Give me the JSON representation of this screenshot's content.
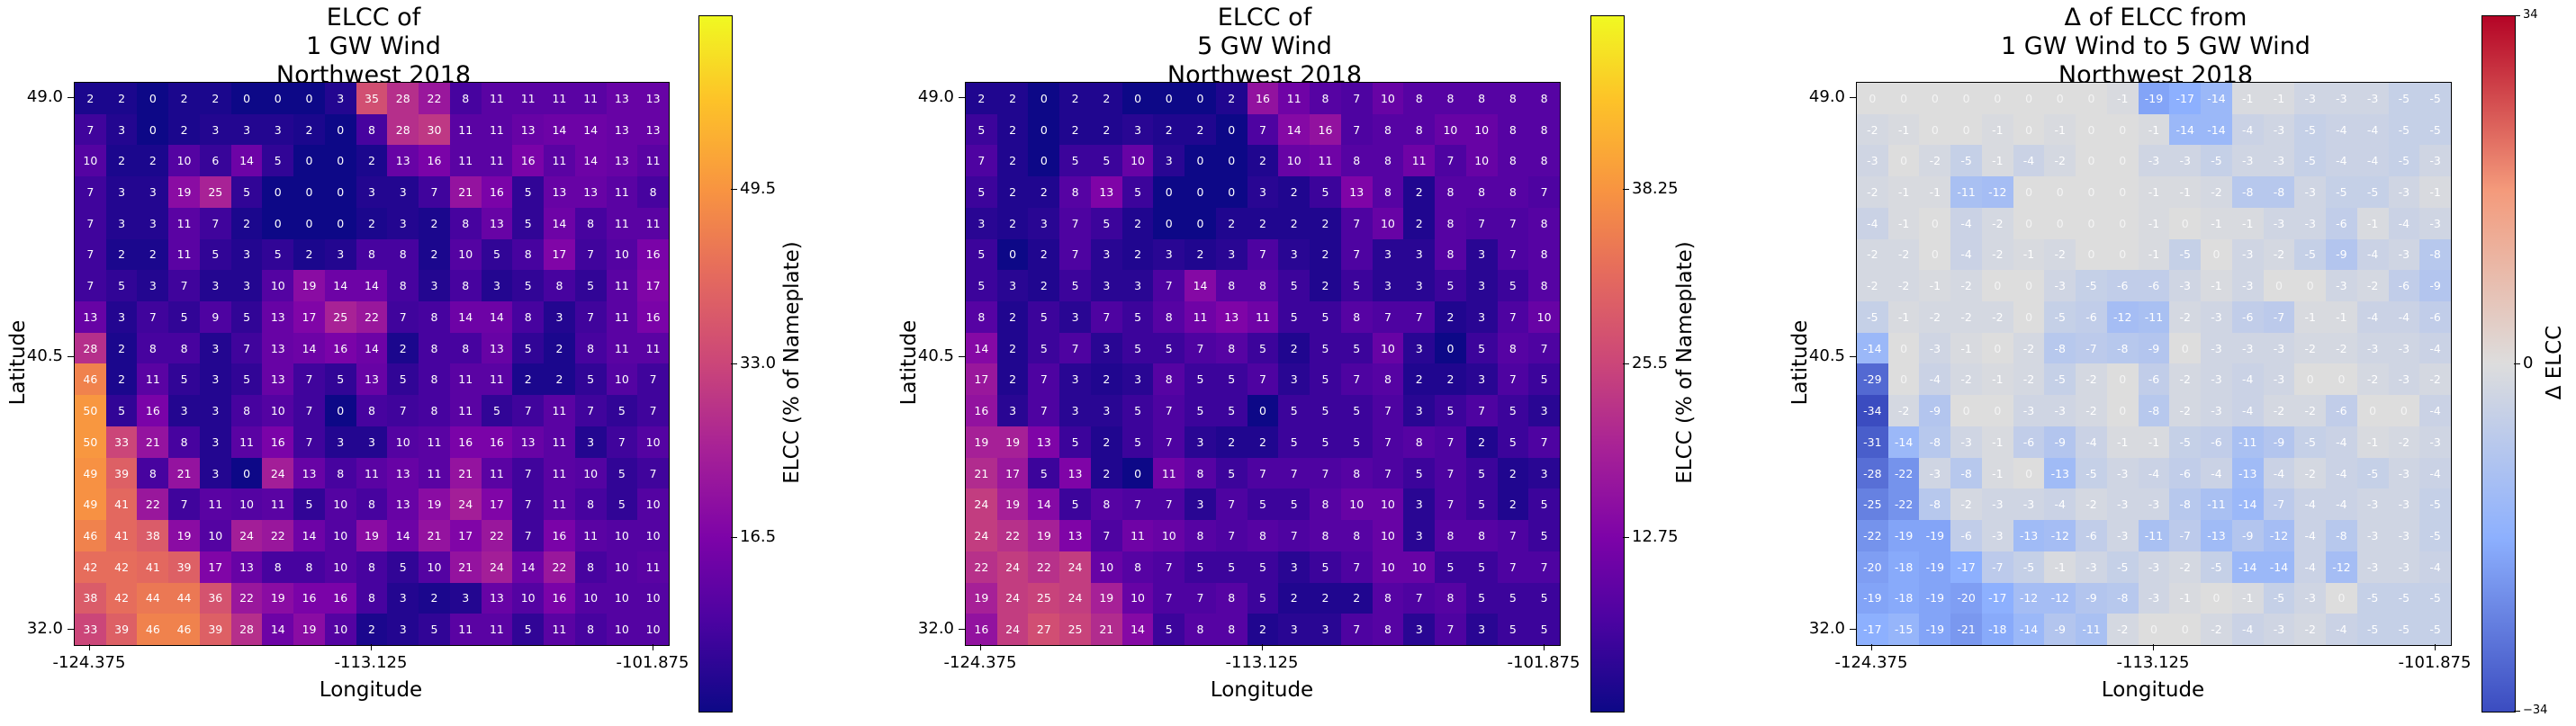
{
  "chart_data": [
    {
      "type": "heatmap",
      "title": "ELCC of\n1 GW Wind\nNorthwest 2018",
      "xlabel": "Longitude",
      "ylabel": "Latitude",
      "x_ticks": [
        "-124.375",
        "-113.125",
        "-101.875"
      ],
      "y_ticks": [
        "49.0",
        "40.5",
        "32.0"
      ],
      "colormap": "plasma",
      "colorbar_label": "ELCC (% of Nameplate)",
      "colorbar_ticks": [
        "16.5",
        "33.0",
        "49.5"
      ],
      "vmin": 0,
      "vmax": 66,
      "values": [
        [
          2,
          2,
          0,
          2,
          2,
          0,
          0,
          0,
          3,
          35,
          28,
          22,
          8,
          11,
          11,
          11,
          11,
          13,
          13
        ],
        [
          7,
          3,
          0,
          2,
          3,
          3,
          3,
          2,
          0,
          8,
          28,
          30,
          11,
          11,
          13,
          14,
          14,
          13,
          13
        ],
        [
          10,
          2,
          2,
          10,
          6,
          14,
          5,
          0,
          0,
          2,
          13,
          16,
          11,
          11,
          16,
          11,
          14,
          13,
          11
        ],
        [
          7,
          3,
          3,
          19,
          25,
          5,
          0,
          0,
          0,
          3,
          3,
          7,
          21,
          16,
          5,
          13,
          13,
          11,
          8
        ],
        [
          7,
          3,
          3,
          11,
          7,
          2,
          0,
          0,
          0,
          2,
          3,
          2,
          8,
          13,
          5,
          14,
          8,
          11,
          11
        ],
        [
          7,
          2,
          2,
          11,
          5,
          3,
          5,
          2,
          3,
          8,
          8,
          2,
          10,
          5,
          8,
          17,
          7,
          10,
          16
        ],
        [
          7,
          5,
          3,
          7,
          3,
          3,
          10,
          19,
          14,
          14,
          8,
          3,
          8,
          3,
          5,
          8,
          5,
          11,
          17
        ],
        [
          13,
          3,
          7,
          5,
          9,
          5,
          13,
          17,
          25,
          22,
          7,
          8,
          14,
          14,
          8,
          3,
          7,
          11,
          16
        ],
        [
          28,
          2,
          8,
          8,
          3,
          7,
          13,
          14,
          16,
          14,
          2,
          8,
          8,
          13,
          5,
          2,
          8,
          11,
          11
        ],
        [
          46,
          2,
          11,
          5,
          3,
          5,
          13,
          7,
          5,
          13,
          5,
          8,
          11,
          11,
          2,
          2,
          5,
          10,
          7
        ],
        [
          50,
          5,
          16,
          3,
          3,
          8,
          10,
          7,
          0,
          8,
          7,
          8,
          11,
          5,
          7,
          11,
          7,
          5,
          7
        ],
        [
          50,
          33,
          21,
          8,
          3,
          11,
          16,
          7,
          3,
          3,
          10,
          11,
          16,
          16,
          13,
          11,
          3,
          7,
          10
        ],
        [
          49,
          39,
          8,
          21,
          3,
          0,
          24,
          13,
          8,
          11,
          13,
          11,
          21,
          11,
          7,
          11,
          10,
          5,
          7
        ],
        [
          49,
          41,
          22,
          7,
          11,
          10,
          11,
          5,
          10,
          8,
          13,
          19,
          24,
          17,
          7,
          11,
          8,
          5,
          10
        ],
        [
          46,
          41,
          38,
          19,
          10,
          24,
          22,
          14,
          10,
          19,
          14,
          21,
          17,
          22,
          7,
          16,
          11,
          10,
          10
        ],
        [
          42,
          42,
          41,
          39,
          17,
          13,
          8,
          8,
          10,
          8,
          5,
          10,
          21,
          24,
          14,
          22,
          8,
          10,
          11
        ],
        [
          38,
          42,
          44,
          44,
          36,
          22,
          19,
          16,
          16,
          8,
          3,
          2,
          3,
          13,
          10,
          16,
          10,
          10,
          10
        ],
        [
          33,
          39,
          46,
          46,
          39,
          28,
          14,
          19,
          10,
          2,
          3,
          5,
          11,
          11,
          5,
          11,
          8,
          10,
          10
        ]
      ]
    },
    {
      "type": "heatmap",
      "title": "ELCC of\n5 GW Wind\nNorthwest 2018",
      "xlabel": "Longitude",
      "ylabel": "Latitude",
      "x_ticks": [
        "-124.375",
        "-113.125",
        "-101.875"
      ],
      "y_ticks": [
        "49.0",
        "40.5",
        "32.0"
      ],
      "colormap": "plasma",
      "colorbar_label": "ELCC (% of Nameplate)",
      "colorbar_ticks": [
        "12.75",
        "25.5",
        "38.25"
      ],
      "vmin": 0,
      "vmax": 51,
      "values": [
        [
          2,
          2,
          0,
          2,
          2,
          0,
          0,
          0,
          2,
          16,
          11,
          8,
          7,
          10,
          8,
          8,
          8,
          8,
          8
        ],
        [
          5,
          2,
          0,
          2,
          2,
          3,
          2,
          2,
          0,
          7,
          14,
          16,
          7,
          8,
          8,
          10,
          10,
          8,
          8
        ],
        [
          7,
          2,
          0,
          5,
          5,
          10,
          3,
          0,
          0,
          2,
          10,
          11,
          8,
          8,
          11,
          7,
          10,
          8,
          8
        ],
        [
          5,
          2,
          2,
          8,
          13,
          5,
          0,
          0,
          0,
          3,
          2,
          5,
          13,
          8,
          2,
          8,
          8,
          8,
          7
        ],
        [
          3,
          2,
          3,
          7,
          5,
          2,
          0,
          0,
          2,
          2,
          2,
          2,
          7,
          10,
          2,
          8,
          7,
          7,
          8
        ],
        [
          5,
          0,
          2,
          7,
          3,
          2,
          3,
          2,
          3,
          7,
          3,
          2,
          7,
          3,
          3,
          8,
          3,
          7,
          8
        ],
        [
          5,
          3,
          2,
          5,
          3,
          3,
          7,
          14,
          8,
          8,
          5,
          2,
          5,
          3,
          3,
          5,
          3,
          5,
          8
        ],
        [
          8,
          2,
          5,
          3,
          7,
          5,
          8,
          11,
          13,
          11,
          5,
          5,
          8,
          7,
          7,
          2,
          3,
          7,
          10
        ],
        [
          14,
          2,
          5,
          7,
          3,
          5,
          5,
          7,
          8,
          5,
          2,
          5,
          5,
          10,
          3,
          0,
          5,
          8,
          7
        ],
        [
          17,
          2,
          7,
          3,
          2,
          3,
          8,
          5,
          5,
          7,
          3,
          5,
          7,
          8,
          2,
          2,
          3,
          7,
          5
        ],
        [
          16,
          3,
          7,
          3,
          3,
          5,
          7,
          5,
          5,
          0,
          5,
          5,
          5,
          7,
          3,
          5,
          7,
          5,
          3
        ],
        [
          19,
          19,
          13,
          5,
          2,
          5,
          7,
          3,
          2,
          2,
          5,
          5,
          5,
          7,
          8,
          7,
          2,
          5,
          7
        ],
        [
          21,
          17,
          5,
          13,
          2,
          0,
          11,
          8,
          5,
          7,
          7,
          7,
          8,
          7,
          5,
          7,
          5,
          2,
          3
        ],
        [
          24,
          19,
          14,
          5,
          8,
          7,
          7,
          3,
          7,
          5,
          5,
          8,
          10,
          10,
          3,
          7,
          5,
          2,
          5
        ],
        [
          24,
          22,
          19,
          13,
          7,
          11,
          10,
          8,
          7,
          8,
          7,
          8,
          8,
          10,
          3,
          8,
          8,
          7,
          5
        ],
        [
          22,
          24,
          22,
          24,
          10,
          8,
          7,
          5,
          5,
          5,
          3,
          5,
          7,
          10,
          10,
          5,
          5,
          7,
          7
        ],
        [
          19,
          24,
          25,
          24,
          19,
          10,
          7,
          7,
          8,
          5,
          2,
          2,
          2,
          8,
          7,
          8,
          5,
          5,
          5
        ],
        [
          16,
          24,
          27,
          25,
          21,
          14,
          5,
          8,
          8,
          2,
          3,
          3,
          7,
          8,
          3,
          7,
          3,
          5,
          5
        ]
      ]
    },
    {
      "type": "heatmap",
      "title": "Δ of ELCC from\n1 GW Wind to 5 GW Wind\nNorthwest 2018",
      "xlabel": "Longitude",
      "ylabel": "Latitude",
      "x_ticks": [
        "-124.375",
        "-113.125",
        "-101.875"
      ],
      "y_ticks": [
        "49.0",
        "40.5",
        "32.0"
      ],
      "colormap": "coolwarm",
      "colorbar_label": "Δ ELCC",
      "colorbar_ticks": [
        "−34",
        "0",
        "34"
      ],
      "vmin": -34,
      "vmax": 34,
      "values": [
        [
          0,
          0,
          0,
          0,
          0,
          0,
          0,
          0,
          -1,
          -19,
          -17,
          -14,
          -1,
          -1,
          -3,
          -3,
          -3,
          -5,
          -5
        ],
        [
          -2,
          -1,
          0,
          0,
          -1,
          0,
          -1,
          0,
          0,
          -1,
          -14,
          -14,
          -4,
          -3,
          -5,
          -4,
          -4,
          -5,
          -5
        ],
        [
          -3,
          0,
          -2,
          -5,
          -1,
          -4,
          -2,
          0,
          0,
          -3,
          -3,
          -5,
          -3,
          -3,
          -5,
          -4,
          -4,
          -5,
          -3
        ],
        [
          -2,
          -1,
          -1,
          -11,
          -12,
          0,
          0,
          0,
          0,
          -1,
          -1,
          -2,
          -8,
          -8,
          -3,
          -5,
          -5,
          -3,
          -1
        ],
        [
          -4,
          -1,
          0,
          -4,
          -2,
          0,
          0,
          0,
          0,
          -1,
          0,
          -1,
          -1,
          -3,
          -3,
          -6,
          -1,
          -4,
          -3
        ],
        [
          -2,
          -2,
          0,
          -4,
          -2,
          -1,
          -2,
          0,
          0,
          -1,
          -5,
          0,
          -3,
          -2,
          -5,
          -9,
          -4,
          -3,
          -8
        ],
        [
          -2,
          -2,
          -1,
          -2,
          0,
          0,
          -3,
          -5,
          -6,
          -6,
          -3,
          -1,
          -3,
          0,
          0,
          -3,
          -2,
          -6,
          -9
        ],
        [
          -5,
          -1,
          -2,
          -2,
          -2,
          0,
          -5,
          -6,
          -12,
          -11,
          -2,
          -3,
          -6,
          -7,
          -1,
          -1,
          -4,
          -4,
          -6
        ],
        [
          -14,
          0,
          -3,
          -1,
          0,
          -2,
          -8,
          -7,
          -8,
          -9,
          0,
          -3,
          -3,
          -3,
          -2,
          -2,
          -3,
          -3,
          -4
        ],
        [
          -29,
          0,
          -4,
          -2,
          -1,
          -2,
          -5,
          -2,
          0,
          -6,
          -2,
          -3,
          -4,
          -3,
          0,
          0,
          -2,
          -3,
          -2
        ],
        [
          -34,
          -2,
          -9,
          0,
          0,
          -3,
          -3,
          -2,
          0,
          -8,
          -2,
          -3,
          -4,
          -2,
          -2,
          -6,
          0,
          0,
          -4
        ],
        [
          -31,
          -14,
          -8,
          -3,
          -1,
          -6,
          -9,
          -4,
          -1,
          -1,
          -5,
          -6,
          -11,
          -9,
          -5,
          -4,
          -1,
          -2,
          -3
        ],
        [
          -28,
          -22,
          -3,
          -8,
          -1,
          0,
          -13,
          -5,
          -3,
          -4,
          -6,
          -4,
          -13,
          -4,
          -2,
          -4,
          -5,
          -3,
          -4
        ],
        [
          -25,
          -22,
          -8,
          -2,
          -3,
          -3,
          -4,
          -2,
          -3,
          -3,
          -8,
          -11,
          -14,
          -7,
          -4,
          -4,
          -3,
          -3,
          -5
        ],
        [
          -22,
          -19,
          -19,
          -6,
          -3,
          -13,
          -12,
          -6,
          -3,
          -11,
          -7,
          -13,
          -9,
          -12,
          -4,
          -8,
          -3,
          -3,
          -5
        ],
        [
          -20,
          -18,
          -19,
          -17,
          -7,
          -5,
          -1,
          -3,
          -5,
          -3,
          -2,
          -5,
          -14,
          -14,
          -4,
          -12,
          -3,
          -3,
          -4
        ],
        [
          -19,
          -18,
          -19,
          -20,
          -17,
          -12,
          -12,
          -9,
          -8,
          -3,
          -1,
          0,
          -1,
          -5,
          -3,
          0,
          -5,
          -5,
          -5
        ],
        [
          -17,
          -15,
          -19,
          -21,
          -18,
          -14,
          -9,
          -11,
          -2,
          0,
          0,
          -2,
          -4,
          -3,
          -2,
          -4,
          -5,
          -5,
          -5
        ]
      ]
    }
  ]
}
